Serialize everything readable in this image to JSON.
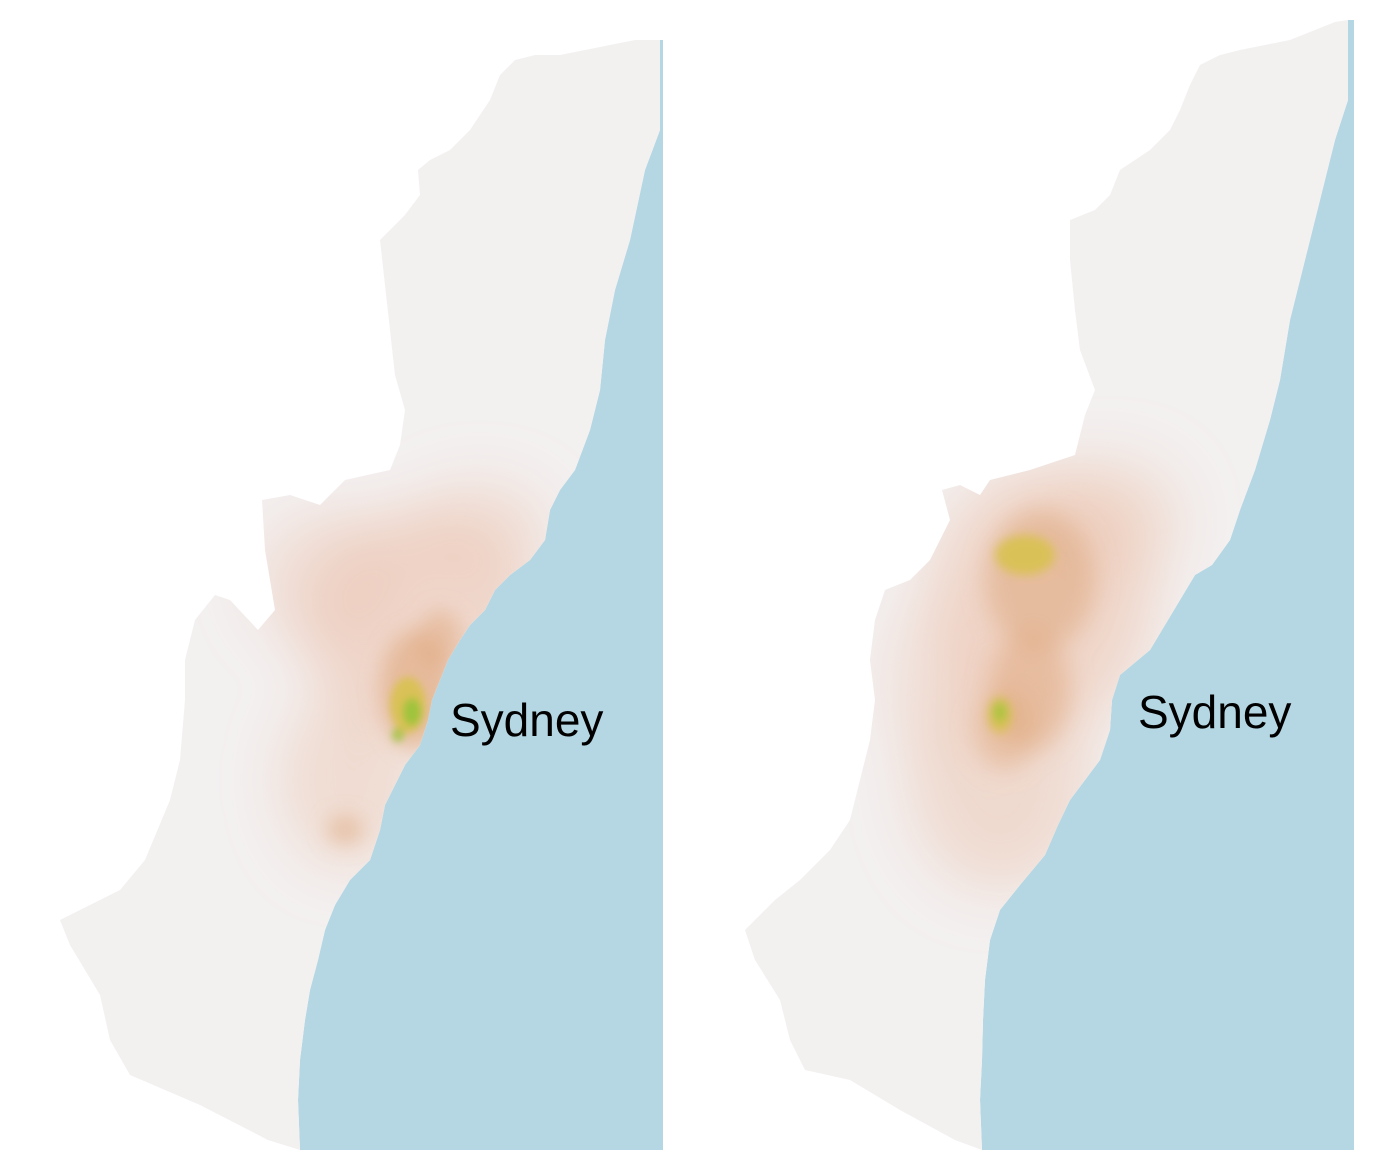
{
  "maps": [
    {
      "city_label": "Sydney"
    },
    {
      "city_label": "Sydney"
    }
  ],
  "colors": {
    "background": "#ffffff",
    "sea": "#b5d7e3",
    "land": "#f3f0f0",
    "low_density": "#ecc3ae",
    "medium_density": "#dfa87d",
    "high_density": "#d8c24a",
    "peak_density": "#98c43a"
  }
}
